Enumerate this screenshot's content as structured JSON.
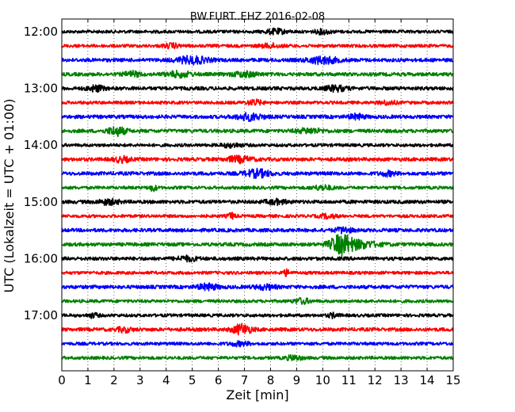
{
  "chart_data": {
    "type": "line",
    "title": "BW.FURT..EHZ 2016-02-08",
    "xlabel": "Zeit  [min]",
    "ylabel": "UTC (Lokalzeit = UTC + 01:00)",
    "xlim": [
      0,
      15
    ],
    "x_ticks": [
      "0",
      "1",
      "2",
      "3",
      "4",
      "5",
      "6",
      "7",
      "8",
      "9",
      "10",
      "11",
      "12",
      "13",
      "14",
      "15"
    ],
    "y_ticks": [
      "12:00",
      "13:00",
      "14:00",
      "15:00",
      "16:00",
      "17:00"
    ],
    "grid": "vertical dotted lines at each minute",
    "trace_interval_minutes": 15,
    "first_trace_start": "12:00",
    "colors": [
      "#000000",
      "#ff0000",
      "#0000ff",
      "#008000"
    ],
    "traces": [
      {
        "start": "12:00",
        "color": "#000000",
        "amp": 0.35,
        "events": [
          {
            "t": 8.2,
            "a": 0.5,
            "w": 0.4
          },
          {
            "t": 10.0,
            "a": 0.45,
            "w": 0.3
          }
        ]
      },
      {
        "start": "12:15",
        "color": "#ff0000",
        "amp": 0.35,
        "events": [
          {
            "t": 4.2,
            "a": 0.45,
            "w": 0.3
          },
          {
            "t": 8.0,
            "a": 0.4,
            "w": 0.4
          }
        ]
      },
      {
        "start": "12:30",
        "color": "#0000ff",
        "amp": 0.4,
        "events": [
          {
            "t": 5.0,
            "a": 0.75,
            "w": 0.6
          },
          {
            "t": 10.0,
            "a": 0.7,
            "w": 0.6
          }
        ]
      },
      {
        "start": "12:45",
        "color": "#008000",
        "amp": 0.4,
        "events": [
          {
            "t": 2.7,
            "a": 0.5,
            "w": 0.3
          },
          {
            "t": 4.5,
            "a": 0.55,
            "w": 0.5
          },
          {
            "t": 7.0,
            "a": 0.5,
            "w": 0.5
          }
        ]
      },
      {
        "start": "13:00",
        "color": "#000000",
        "amp": 0.4,
        "events": [
          {
            "t": 1.3,
            "a": 0.6,
            "w": 0.3
          },
          {
            "t": 10.5,
            "a": 0.55,
            "w": 0.4
          }
        ]
      },
      {
        "start": "13:15",
        "color": "#ff0000",
        "amp": 0.35,
        "events": [
          {
            "t": 7.4,
            "a": 0.5,
            "w": 0.3
          },
          {
            "t": 12.5,
            "a": 0.4,
            "w": 0.3
          }
        ]
      },
      {
        "start": "13:30",
        "color": "#0000ff",
        "amp": 0.4,
        "events": [
          {
            "t": 7.2,
            "a": 0.7,
            "w": 0.5
          },
          {
            "t": 11.3,
            "a": 0.5,
            "w": 0.3
          }
        ]
      },
      {
        "start": "13:45",
        "color": "#008000",
        "amp": 0.4,
        "events": [
          {
            "t": 2.1,
            "a": 0.9,
            "w": 0.35
          },
          {
            "t": 9.5,
            "a": 0.5,
            "w": 0.5
          }
        ]
      },
      {
        "start": "14:00",
        "color": "#000000",
        "amp": 0.35,
        "events": [
          {
            "t": 6.5,
            "a": 0.4,
            "w": 0.4
          }
        ]
      },
      {
        "start": "14:15",
        "color": "#ff0000",
        "amp": 0.4,
        "events": [
          {
            "t": 2.3,
            "a": 0.55,
            "w": 0.3
          },
          {
            "t": 6.8,
            "a": 0.6,
            "w": 0.5
          }
        ]
      },
      {
        "start": "14:30",
        "color": "#0000ff",
        "amp": 0.4,
        "events": [
          {
            "t": 7.5,
            "a": 0.8,
            "w": 0.5
          },
          {
            "t": 12.5,
            "a": 0.45,
            "w": 0.3
          }
        ]
      },
      {
        "start": "14:45",
        "color": "#008000",
        "amp": 0.35,
        "events": [
          {
            "t": 3.5,
            "a": 0.6,
            "w": 0.15
          },
          {
            "t": 10.0,
            "a": 0.45,
            "w": 0.4
          }
        ]
      },
      {
        "start": "15:00",
        "color": "#000000",
        "amp": 0.4,
        "events": [
          {
            "t": 1.8,
            "a": 0.5,
            "w": 0.4
          },
          {
            "t": 8.2,
            "a": 0.45,
            "w": 0.4
          }
        ]
      },
      {
        "start": "15:15",
        "color": "#ff0000",
        "amp": 0.35,
        "events": [
          {
            "t": 6.5,
            "a": 0.6,
            "w": 0.15
          },
          {
            "t": 10.2,
            "a": 0.4,
            "w": 0.3
          }
        ]
      },
      {
        "start": "15:30",
        "color": "#0000ff",
        "amp": 0.4,
        "events": [
          {
            "t": 10.8,
            "a": 0.6,
            "w": 0.3
          }
        ]
      },
      {
        "start": "15:45",
        "color": "#008000",
        "amp": 0.4,
        "events": [
          {
            "t": 10.7,
            "a": 1.8,
            "w": 0.4
          },
          {
            "t": 11.3,
            "a": 0.8,
            "w": 0.8
          }
        ]
      },
      {
        "start": "16:00",
        "color": "#000000",
        "amp": 0.4,
        "events": [
          {
            "t": 4.8,
            "a": 0.45,
            "w": 0.4
          }
        ]
      },
      {
        "start": "16:15",
        "color": "#ff0000",
        "amp": 0.35,
        "events": [
          {
            "t": 8.6,
            "a": 0.6,
            "w": 0.15
          }
        ]
      },
      {
        "start": "16:30",
        "color": "#0000ff",
        "amp": 0.4,
        "events": [
          {
            "t": 5.6,
            "a": 0.6,
            "w": 0.4
          },
          {
            "t": 7.8,
            "a": 0.45,
            "w": 0.4
          }
        ]
      },
      {
        "start": "16:45",
        "color": "#008000",
        "amp": 0.35,
        "events": [
          {
            "t": 9.2,
            "a": 0.55,
            "w": 0.3
          }
        ]
      },
      {
        "start": "17:00",
        "color": "#000000",
        "amp": 0.35,
        "events": [
          {
            "t": 1.2,
            "a": 0.45,
            "w": 0.2
          },
          {
            "t": 10.4,
            "a": 0.45,
            "w": 0.2
          }
        ]
      },
      {
        "start": "17:15",
        "color": "#ff0000",
        "amp": 0.4,
        "events": [
          {
            "t": 6.9,
            "a": 1.1,
            "w": 0.35
          },
          {
            "t": 2.4,
            "a": 0.45,
            "w": 0.3
          }
        ]
      },
      {
        "start": "17:30",
        "color": "#0000ff",
        "amp": 0.35,
        "events": [
          {
            "t": 6.8,
            "a": 0.4,
            "w": 0.4
          }
        ]
      },
      {
        "start": "17:45",
        "color": "#008000",
        "amp": 0.35,
        "events": [
          {
            "t": 8.9,
            "a": 0.5,
            "w": 0.3
          }
        ]
      }
    ]
  }
}
